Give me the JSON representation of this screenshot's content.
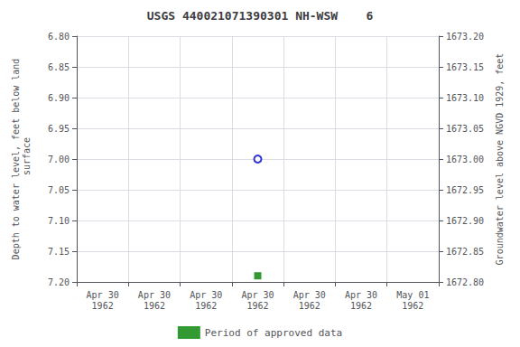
{
  "chart_data": {
    "type": "scatter",
    "title": "USGS 440021071390301 NH-WSW    6",
    "ylabel": "Depth to water level, feet below land\n surface",
    "y2label": "Groundwater level above NGVD 1929, feet",
    "categories": [
      "Apr 30\n1962",
      "Apr 30\n1962",
      "Apr 30\n1962",
      "Apr 30\n1962",
      "Apr 30\n1962",
      "Apr 30\n1962",
      "May 01\n1962"
    ],
    "series": [
      {
        "color": "#0000cc",
        "marker": "circle_open",
        "values": [
          null,
          null,
          null,
          7.0,
          null,
          null,
          null
        ]
      },
      {
        "name": "Period of approved data",
        "color": "#008000",
        "marker": "square",
        "values": [
          null,
          null,
          null,
          7.19,
          null,
          null,
          null
        ]
      }
    ],
    "ylim": [
      7.2,
      6.8
    ],
    "yticks": [
      {
        "value": 6.8,
        "label": "6.80"
      },
      6.85,
      {
        "value": 6.9,
        "label": "6.90"
      },
      6.95,
      {
        "value": 7.0,
        "label": "7.00"
      },
      7.05,
      {
        "value": 7.1,
        "label": "7.10"
      },
      7.15,
      {
        "value": 7.2,
        "label": "7.20"
      }
    ],
    "y2lim": [
      1672.8,
      1673.2
    ],
    "y2ticks": [
      {
        "value": 1673.2,
        "label": "1673.20"
      },
      1673.15,
      {
        "value": 1673.1,
        "label": "1673.10"
      },
      1673.05,
      {
        "value": 1673.0,
        "label": "1673.00"
      },
      1672.95,
      {
        "value": 1672.9,
        "label": "1672.90"
      },
      1672.85,
      {
        "value": 1672.8,
        "label": "1672.80"
      }
    ],
    "grid": true,
    "legend": "bottom"
  }
}
